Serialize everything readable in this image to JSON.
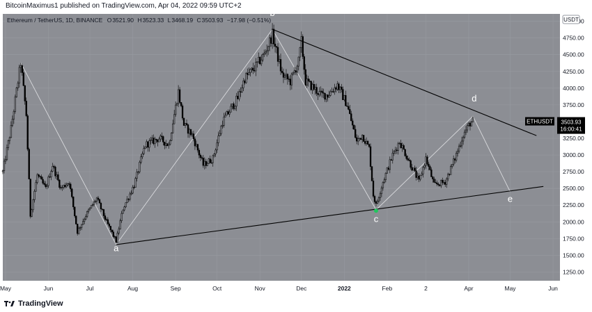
{
  "header": {
    "publisher_line": "BitcoinMaximus1 published on TradingView.com, Apr 04, 2022 09:59 UTC+2"
  },
  "footer": {
    "brand": "TradingView"
  },
  "chart_data": {
    "type": "candlestick",
    "title": "Ethereum / TetherUS, 1D, BINANCE",
    "ohlc_readout": {
      "o_label": "O",
      "o": "3521.90",
      "h_label": "H",
      "h": "3523.33",
      "l_label": "L",
      "l": "3468.19",
      "c_label": "C",
      "c": "3503.93",
      "change": "−17.98 (−0.51%)"
    },
    "currency_label": "USDT",
    "price_tag": {
      "symbol": "ETHUSDT",
      "price": "3503.93",
      "countdown": "16:00:41",
      "value": 3503.93
    },
    "y_ticks": [
      5000,
      4750,
      4500,
      4250,
      4000,
      3750,
      3500,
      3250,
      3000,
      2750,
      2500,
      2250,
      2000,
      1750,
      1500,
      1250
    ],
    "y_tick_labels": [
      "5000.00",
      "4750.00",
      "4500.00",
      "4250.00",
      "4000.00",
      "3750.00",
      "3500.00",
      "3250.00",
      "3000.00",
      "2750.00",
      "2500.00",
      "2250.00",
      "2000.00",
      "1750.00",
      "1500.00",
      "1250.00"
    ],
    "ylim": [
      1120,
      5110
    ],
    "x_ticks": [
      {
        "label": "May",
        "date": "2021-05-01"
      },
      {
        "label": "Jun",
        "date": "2021-06-01"
      },
      {
        "label": "Jul",
        "date": "2021-07-01"
      },
      {
        "label": "Aug",
        "date": "2021-08-01"
      },
      {
        "label": "Sep",
        "date": "2021-09-01"
      },
      {
        "label": "Oct",
        "date": "2021-10-01"
      },
      {
        "label": "Nov",
        "date": "2021-11-01"
      },
      {
        "label": "Dec",
        "date": "2021-12-01"
      },
      {
        "label": "2022",
        "date": "2022-01-01"
      },
      {
        "label": "Feb",
        "date": "2022-02-01"
      },
      {
        "label": "2",
        "date": "2022-03-01"
      },
      {
        "label": "Apr",
        "date": "2022-04-01"
      },
      {
        "label": "May",
        "date": "2022-05-01"
      },
      {
        "label": "Jun",
        "date": "2022-06-01"
      }
    ],
    "xlim": [
      "2021-04-29",
      "2022-06-06"
    ],
    "price_path": [
      [
        "2021-04-29",
        2750
      ],
      [
        "2021-05-05",
        3400
      ],
      [
        "2021-05-12",
        4380
      ],
      [
        "2021-05-16",
        3600
      ],
      [
        "2021-05-19",
        2100
      ],
      [
        "2021-05-24",
        2700
      ],
      [
        "2021-05-30",
        2500
      ],
      [
        "2021-06-04",
        2850
      ],
      [
        "2021-06-10",
        2500
      ],
      [
        "2021-06-16",
        2600
      ],
      [
        "2021-06-22",
        1850
      ],
      [
        "2021-06-28",
        2100
      ],
      [
        "2021-07-06",
        2350
      ],
      [
        "2021-07-13",
        2000
      ],
      [
        "2021-07-20",
        1710
      ],
      [
        "2021-07-25",
        2200
      ],
      [
        "2021-08-02",
        2550
      ],
      [
        "2021-08-10",
        3150
      ],
      [
        "2021-08-20",
        3250
      ],
      [
        "2021-08-27",
        3150
      ],
      [
        "2021-09-03",
        3950
      ],
      [
        "2021-09-07",
        3450
      ],
      [
        "2021-09-13",
        3300
      ],
      [
        "2021-09-21",
        2850
      ],
      [
        "2021-09-28",
        2950
      ],
      [
        "2021-10-05",
        3500
      ],
      [
        "2021-10-16",
        3850
      ],
      [
        "2021-10-21",
        4150
      ],
      [
        "2021-10-28",
        4300
      ],
      [
        "2021-11-04",
        4500
      ],
      [
        "2021-11-10",
        4800
      ],
      [
        "2021-11-17",
        4200
      ],
      [
        "2021-11-23",
        4100
      ],
      [
        "2021-11-29",
        4400
      ],
      [
        "2021-12-01",
        4700
      ],
      [
        "2021-12-04",
        4100
      ],
      [
        "2021-12-10",
        4000
      ],
      [
        "2021-12-15",
        3900
      ],
      [
        "2021-12-20",
        3900
      ],
      [
        "2021-12-27",
        4050
      ],
      [
        "2022-01-03",
        3750
      ],
      [
        "2022-01-10",
        3200
      ],
      [
        "2022-01-14",
        3300
      ],
      [
        "2022-01-19",
        3100
      ],
      [
        "2022-01-22",
        2400
      ],
      [
        "2022-01-24",
        2250
      ],
      [
        "2022-01-29",
        2600
      ],
      [
        "2022-02-05",
        3000
      ],
      [
        "2022-02-10",
        3200
      ],
      [
        "2022-02-17",
        2900
      ],
      [
        "2022-02-24",
        2600
      ],
      [
        "2022-03-01",
        2950
      ],
      [
        "2022-03-07",
        2550
      ],
      [
        "2022-03-15",
        2600
      ],
      [
        "2022-03-22",
        2950
      ],
      [
        "2022-03-28",
        3300
      ],
      [
        "2022-04-02",
        3480
      ],
      [
        "2022-04-04",
        3504
      ]
    ],
    "annotations": [
      {
        "text": "a",
        "date": "2021-07-20",
        "price": 1560
      },
      {
        "text": "b",
        "date": "2021-11-10",
        "price": 5080
      },
      {
        "text": "c",
        "date": "2022-01-24",
        "price": 2000
      },
      {
        "text": "d",
        "date": "2022-04-05",
        "price": 3800
      },
      {
        "text": "e",
        "date": "2022-05-01",
        "price": 2300
      }
    ],
    "trendlines": [
      {
        "name": "upper",
        "from": [
          "2021-11-10",
          4880
        ],
        "to": [
          "2022-05-20",
          3290
        ]
      },
      {
        "name": "lower",
        "from": [
          "2021-07-20",
          1660
        ],
        "to": [
          "2022-05-25",
          2530
        ]
      }
    ],
    "wave_path": [
      [
        "2021-05-12",
        4380
      ],
      [
        "2021-07-20",
        1660
      ],
      [
        "2021-11-10",
        4880
      ],
      [
        "2022-01-24",
        2180
      ],
      [
        "2022-04-04",
        3580
      ],
      [
        "2022-05-01",
        2450
      ]
    ],
    "colors": {
      "chart_bg": "#8c8e94",
      "candle": "#000000",
      "grid": "#979aa0",
      "trendline": "#000000",
      "wave": "#d9dadd",
      "label": "#ffffff",
      "axis_text": "#131722",
      "price_tag_bg": "#000000",
      "price_tag_text": "#ffffff",
      "marker": "#22c55e"
    }
  }
}
